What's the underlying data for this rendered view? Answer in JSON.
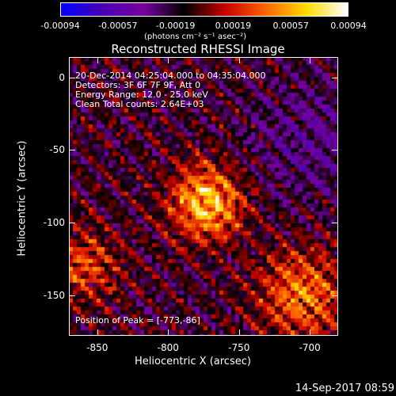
{
  "colorbar": {
    "tick_labels": [
      "-0.00094",
      "-0.00057",
      "-0.00019",
      "0.00019",
      "0.00057",
      "0.00094"
    ],
    "units_label": "(photons cm⁻² s⁻¹ asec⁻²)",
    "colors": [
      "#0000ff",
      "#4b00b4",
      "#7800a0",
      "#000000",
      "#c80000",
      "#ff6400",
      "#ffdc00",
      "#ffffff"
    ]
  },
  "chart_data": {
    "type": "heatmap",
    "title": "Reconstructed RHESSI Image",
    "xlabel": "Heliocentric X (arcsec)",
    "ylabel": "Heliocentric Y (arcsec)",
    "xlim": [
      -870,
      -680
    ],
    "ylim": [
      -178,
      14
    ],
    "x_ticks": [
      -850,
      -800,
      -750,
      -700
    ],
    "y_ticks": [
      0,
      -50,
      -100,
      -150
    ],
    "zlim": [
      -0.00094,
      0.00094
    ],
    "peak": {
      "x": -773,
      "y": -86
    },
    "annotations": [
      "20-Dec-2014 04:25:04.000 to 04:35:04.000",
      "Detectors: 3F 6F 7F 9F, Att 0",
      "Energy Range: 12.0 - 25.0 keV",
      "Clean    Total counts: 2.64E+03"
    ],
    "peak_label": "Position of Peak = [-773,-86]"
  },
  "footer": {
    "timestamp": "14-Sep-2017 08:59"
  }
}
